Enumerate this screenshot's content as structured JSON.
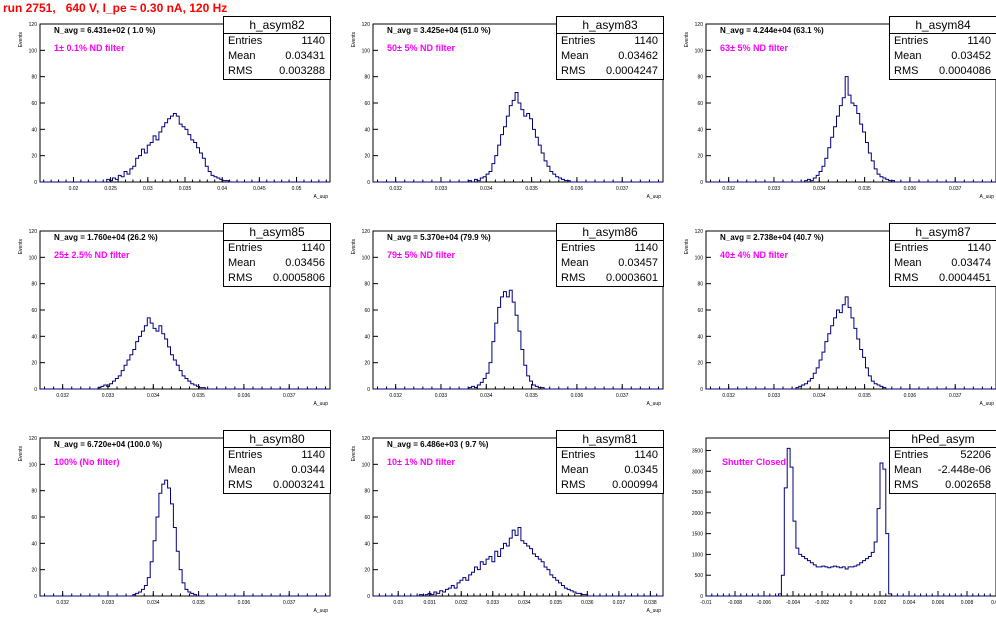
{
  "title": "run 2751,   640 V, I_pe ≈ 0.30 nA, 120 Hz",
  "chart_data": [
    {
      "type": "bar",
      "name": "h_asym82",
      "stat_labels": [
        "Entries",
        "Mean",
        "RMS"
      ],
      "entries": "1140",
      "mean": "0.03431",
      "rms": "0.003288",
      "n_avg": "N_avg = 6.431e+02 ( 1.0 %)",
      "filter": "1± 0.1% ND filter",
      "xlabel": "A_uup",
      "ylabel": "Events",
      "xlim": [
        0.0155,
        0.0545
      ],
      "ylim": [
        0,
        120
      ],
      "xticks": [
        0.02,
        0.025,
        0.03,
        0.035,
        0.04,
        0.045,
        0.05
      ],
      "xtick_labels": [
        "0.02",
        "0.025",
        "0.03",
        "0.035",
        "0.04",
        "0.045",
        "0.05"
      ],
      "yticks": [
        0,
        20,
        40,
        60,
        80,
        100,
        120
      ],
      "ytick_labels": [
        "0",
        "20",
        "40",
        "60",
        "80",
        "100",
        "120"
      ],
      "x0": 0.0155,
      "bin_width": 0.00039,
      "values": [
        0,
        0,
        0,
        0,
        0,
        0,
        0,
        0,
        0,
        0,
        0,
        0,
        0,
        0,
        0,
        0,
        0,
        0,
        0,
        0,
        0,
        0,
        0,
        2,
        1,
        3,
        2,
        5,
        4,
        8,
        6,
        10,
        12,
        18,
        20,
        25,
        22,
        28,
        30,
        35,
        32,
        38,
        42,
        45,
        48,
        50,
        52,
        50,
        44,
        42,
        40,
        36,
        32,
        30,
        26,
        22,
        18,
        12,
        8,
        5,
        4,
        3,
        2,
        1,
        1,
        0,
        0,
        0,
        0,
        0,
        0,
        0,
        0,
        0,
        0,
        0,
        0,
        0,
        0,
        0,
        0,
        0,
        0,
        0,
        0,
        0,
        0,
        0,
        0,
        0,
        0,
        0,
        0,
        0,
        0,
        0,
        0,
        0,
        0,
        0
      ]
    },
    {
      "type": "bar",
      "name": "h_asym83",
      "stat_labels": [
        "Entries",
        "Mean",
        "RMS"
      ],
      "entries": "1140",
      "mean": "0.03462",
      "rms": "0.0004247",
      "n_avg": "N_avg = 3.425e+04 (51.0 %)",
      "filter": "50± 5% ND filter",
      "xlabel": "A_uup",
      "ylabel": "Events",
      "xlim": [
        0.0315,
        0.0379
      ],
      "ylim": [
        0,
        120
      ],
      "xticks": [
        0.032,
        0.033,
        0.034,
        0.035,
        0.036,
        0.037
      ],
      "xtick_labels": [
        "0.032",
        "0.033",
        "0.034",
        "0.035",
        "0.036",
        "0.037"
      ],
      "yticks": [
        0,
        20,
        40,
        60,
        80,
        100,
        120
      ],
      "ytick_labels": [
        "0",
        "20",
        "40",
        "60",
        "80",
        "100",
        "120"
      ],
      "x0": 0.0315,
      "bin_width": 6.4e-05,
      "values": [
        0,
        0,
        0,
        0,
        0,
        0,
        0,
        0,
        0,
        0,
        0,
        0,
        0,
        0,
        0,
        0,
        0,
        0,
        0,
        0,
        0,
        0,
        0,
        0,
        0,
        0,
        0,
        0,
        0,
        0,
        0,
        0,
        0,
        1,
        0,
        2,
        1,
        3,
        4,
        6,
        8,
        14,
        20,
        28,
        36,
        42,
        50,
        58,
        62,
        68,
        60,
        55,
        50,
        52,
        48,
        40,
        34,
        28,
        22,
        16,
        12,
        8,
        6,
        4,
        3,
        2,
        1,
        1,
        0,
        0,
        0,
        0,
        0,
        0,
        0,
        0,
        0,
        0,
        0,
        0,
        0,
        0,
        0,
        0,
        0,
        0,
        0,
        0,
        0,
        0,
        0,
        0,
        0,
        0,
        0,
        0,
        0,
        0,
        0,
        0
      ]
    },
    {
      "type": "bar",
      "name": "h_asym84",
      "stat_labels": [
        "Entries",
        "Mean",
        "RMS"
      ],
      "entries": "1140",
      "mean": "0.03452",
      "rms": "0.0004086",
      "n_avg": "N_avg = 4.244e+04 (63.1 %)",
      "filter": "63± 5% ND filter",
      "xlabel": "A_uup",
      "ylabel": "Events",
      "xlim": [
        0.0315,
        0.0379
      ],
      "ylim": [
        0,
        120
      ],
      "xticks": [
        0.032,
        0.033,
        0.034,
        0.035,
        0.036,
        0.037
      ],
      "xtick_labels": [
        "0.032",
        "0.033",
        "0.034",
        "0.035",
        "0.036",
        "0.037"
      ],
      "yticks": [
        0,
        20,
        40,
        60,
        80,
        100,
        120
      ],
      "ytick_labels": [
        "0",
        "20",
        "40",
        "60",
        "80",
        "100",
        "120"
      ],
      "x0": 0.0315,
      "bin_width": 6.4e-05,
      "values": [
        0,
        0,
        0,
        0,
        0,
        0,
        0,
        0,
        0,
        0,
        0,
        0,
        0,
        0,
        0,
        0,
        0,
        0,
        0,
        0,
        0,
        0,
        0,
        0,
        0,
        0,
        0,
        0,
        0,
        0,
        0,
        0,
        0,
        0,
        1,
        2,
        1,
        3,
        5,
        8,
        12,
        18,
        26,
        34,
        42,
        50,
        58,
        64,
        80,
        66,
        60,
        58,
        52,
        44,
        38,
        30,
        22,
        16,
        10,
        6,
        4,
        3,
        2,
        1,
        1,
        0,
        0,
        0,
        0,
        0,
        0,
        0,
        0,
        0,
        0,
        0,
        0,
        0,
        0,
        0,
        0,
        0,
        0,
        0,
        0,
        0,
        0,
        0,
        0,
        0,
        0,
        0,
        0,
        0,
        0,
        0,
        0,
        0,
        0,
        0
      ]
    },
    {
      "type": "bar",
      "name": "h_asym85",
      "stat_labels": [
        "Entries",
        "Mean",
        "RMS"
      ],
      "entries": "1140",
      "mean": "0.03456",
      "rms": "0.0005806",
      "n_avg": "N_avg = 1.760e+04 (26.2 %)",
      "filter": "25± 2.5% ND filter",
      "xlabel": "A_uup",
      "ylabel": "Events",
      "xlim": [
        0.0315,
        0.0379
      ],
      "ylim": [
        0,
        120
      ],
      "xticks": [
        0.032,
        0.033,
        0.034,
        0.035,
        0.036,
        0.037
      ],
      "xtick_labels": [
        "0.032",
        "0.033",
        "0.034",
        "0.035",
        "0.036",
        "0.037"
      ],
      "yticks": [
        0,
        20,
        40,
        60,
        80,
        100,
        120
      ],
      "ytick_labels": [
        "0",
        "20",
        "40",
        "60",
        "80",
        "100",
        "120"
      ],
      "x0": 0.0315,
      "bin_width": 6.4e-05,
      "values": [
        0,
        0,
        0,
        0,
        0,
        0,
        0,
        0,
        0,
        0,
        0,
        0,
        0,
        0,
        0,
        0,
        0,
        0,
        0,
        0,
        1,
        2,
        3,
        2,
        4,
        6,
        8,
        10,
        14,
        18,
        22,
        26,
        30,
        36,
        40,
        44,
        48,
        54,
        50,
        46,
        44,
        48,
        42,
        38,
        32,
        26,
        22,
        18,
        14,
        10,
        8,
        6,
        4,
        3,
        2,
        1,
        1,
        0,
        0,
        0,
        0,
        0,
        0,
        0,
        0,
        0,
        0,
        0,
        0,
        0,
        0,
        0,
        0,
        0,
        0,
        0,
        0,
        0,
        0,
        0,
        0,
        0,
        0,
        0,
        0,
        0,
        0,
        0,
        0,
        0,
        0,
        0,
        0,
        0,
        0,
        0,
        0,
        0,
        0,
        0
      ]
    },
    {
      "type": "bar",
      "name": "h_asym86",
      "stat_labels": [
        "Entries",
        "Mean",
        "RMS"
      ],
      "entries": "1140",
      "mean": "0.03457",
      "rms": "0.0003601",
      "n_avg": "N_avg = 5.370e+04 (79.9 %)",
      "filter": "79± 5% ND filter",
      "xlabel": "A_uup",
      "ylabel": "Events",
      "xlim": [
        0.0315,
        0.0379
      ],
      "ylim": [
        0,
        120
      ],
      "xticks": [
        0.032,
        0.033,
        0.034,
        0.035,
        0.036,
        0.037
      ],
      "xtick_labels": [
        "0.032",
        "0.033",
        "0.034",
        "0.035",
        "0.036",
        "0.037"
      ],
      "yticks": [
        0,
        20,
        40,
        60,
        80,
        100,
        120
      ],
      "ytick_labels": [
        "0",
        "20",
        "40",
        "60",
        "80",
        "100",
        "120"
      ],
      "x0": 0.0315,
      "bin_width": 6.4e-05,
      "values": [
        0,
        0,
        0,
        0,
        0,
        0,
        0,
        0,
        0,
        0,
        0,
        0,
        0,
        0,
        0,
        0,
        0,
        0,
        0,
        0,
        0,
        0,
        0,
        0,
        0,
        0,
        0,
        0,
        0,
        0,
        0,
        0,
        0,
        1,
        2,
        1,
        3,
        5,
        8,
        12,
        20,
        36,
        50,
        62,
        70,
        74,
        70,
        75,
        66,
        56,
        44,
        30,
        18,
        10,
        6,
        3,
        2,
        1,
        1,
        0,
        0,
        0,
        0,
        0,
        0,
        0,
        0,
        0,
        0,
        0,
        0,
        0,
        0,
        0,
        0,
        0,
        0,
        0,
        0,
        0,
        0,
        0,
        0,
        0,
        0,
        0,
        0,
        0,
        0,
        0,
        0,
        0,
        0,
        0,
        0,
        0,
        0,
        0,
        0,
        0
      ]
    },
    {
      "type": "bar",
      "name": "h_asym87",
      "stat_labels": [
        "Entries",
        "Mean",
        "RMS"
      ],
      "entries": "1140",
      "mean": "0.03474",
      "rms": "0.0004451",
      "n_avg": "N_avg = 2.738e+04 (40.7 %)",
      "filter": "40± 4% ND filter",
      "xlabel": "A_uup",
      "ylabel": "Events",
      "xlim": [
        0.0315,
        0.0379
      ],
      "ylim": [
        0,
        120
      ],
      "xticks": [
        0.032,
        0.033,
        0.034,
        0.035,
        0.036,
        0.037
      ],
      "xtick_labels": [
        "0.032",
        "0.033",
        "0.034",
        "0.035",
        "0.036",
        "0.037"
      ],
      "yticks": [
        0,
        20,
        40,
        60,
        80,
        100,
        120
      ],
      "ytick_labels": [
        "0",
        "20",
        "40",
        "60",
        "80",
        "100",
        "120"
      ],
      "x0": 0.0315,
      "bin_width": 6.4e-05,
      "values": [
        0,
        0,
        0,
        0,
        0,
        0,
        0,
        0,
        0,
        0,
        0,
        0,
        0,
        0,
        0,
        0,
        0,
        0,
        0,
        0,
        0,
        0,
        0,
        0,
        0,
        0,
        0,
        0,
        0,
        0,
        0,
        1,
        2,
        3,
        4,
        6,
        8,
        12,
        16,
        22,
        28,
        36,
        42,
        48,
        54,
        60,
        58,
        64,
        70,
        62,
        54,
        46,
        38,
        30,
        24,
        16,
        10,
        6,
        4,
        3,
        2,
        1,
        0,
        0,
        0,
        0,
        0,
        0,
        0,
        0,
        0,
        0,
        0,
        0,
        0,
        0,
        0,
        0,
        0,
        0,
        0,
        0,
        0,
        0,
        0,
        0,
        0,
        0,
        0,
        0,
        0,
        0,
        0,
        0,
        0,
        0,
        0,
        0,
        0,
        0
      ]
    },
    {
      "type": "bar",
      "name": "h_asym80",
      "stat_labels": [
        "Entries",
        "Mean",
        "RMS"
      ],
      "entries": "1140",
      "mean": "0.0344",
      "rms": "0.0003241",
      "n_avg": "N_avg = 6.720e+04 (100.0 %)",
      "filter": "100% (No filter)",
      "xlabel": "A_uup",
      "ylabel": "Events",
      "xlim": [
        0.0315,
        0.0379
      ],
      "ylim": [
        0,
        120
      ],
      "xticks": [
        0.032,
        0.033,
        0.034,
        0.035,
        0.036,
        0.037
      ],
      "xtick_labels": [
        "0.032",
        "0.033",
        "0.034",
        "0.035",
        "0.036",
        "0.037"
      ],
      "yticks": [
        0,
        20,
        40,
        60,
        80,
        100,
        120
      ],
      "ytick_labels": [
        "0",
        "20",
        "40",
        "60",
        "80",
        "100",
        "120"
      ],
      "x0": 0.0315,
      "bin_width": 6.4e-05,
      "values": [
        0,
        0,
        0,
        0,
        0,
        0,
        0,
        0,
        0,
        0,
        0,
        0,
        0,
        0,
        0,
        0,
        0,
        0,
        0,
        0,
        0,
        0,
        0,
        0,
        0,
        0,
        0,
        0,
        0,
        0,
        0,
        0,
        1,
        2,
        3,
        5,
        8,
        14,
        26,
        42,
        60,
        78,
        85,
        88,
        82,
        70,
        52,
        34,
        20,
        10,
        5,
        3,
        2,
        1,
        0,
        0,
        0,
        0,
        0,
        0,
        0,
        0,
        0,
        0,
        0,
        0,
        0,
        0,
        0,
        0,
        0,
        0,
        0,
        0,
        0,
        0,
        0,
        0,
        0,
        0,
        0,
        0,
        0,
        0,
        0,
        0,
        0,
        0,
        0,
        0,
        0,
        0,
        0,
        0,
        0,
        0,
        0,
        0,
        0,
        0
      ]
    },
    {
      "type": "bar",
      "name": "h_asym81",
      "stat_labels": [
        "Entries",
        "Mean",
        "RMS"
      ],
      "entries": "1140",
      "mean": "0.0345",
      "rms": "0.000994",
      "n_avg": "N_avg = 6.486e+03 ( 9.7 %)",
      "filter": "10± 1% ND filter",
      "xlabel": "A_uup",
      "ylabel": "Events",
      "xlim": [
        0.0292,
        0.0384
      ],
      "ylim": [
        0,
        120
      ],
      "xticks": [
        0.03,
        0.031,
        0.032,
        0.033,
        0.034,
        0.035,
        0.036,
        0.037,
        0.038
      ],
      "xtick_labels": [
        "0.03",
        "0.031",
        "0.032",
        "0.033",
        "0.034",
        "0.035",
        "0.036",
        "0.037",
        "0.038"
      ],
      "yticks": [
        0,
        20,
        40,
        60,
        80,
        100,
        120
      ],
      "ytick_labels": [
        "0",
        "20",
        "40",
        "60",
        "80",
        "100",
        "120"
      ],
      "x0": 0.0292,
      "bin_width": 9.2e-05,
      "values": [
        0,
        0,
        0,
        0,
        0,
        0,
        0,
        0,
        0,
        0,
        0,
        0,
        0,
        0,
        0,
        0,
        1,
        0,
        1,
        2,
        1,
        3,
        2,
        4,
        3,
        5,
        6,
        8,
        6,
        10,
        12,
        14,
        12,
        16,
        18,
        22,
        20,
        26,
        24,
        28,
        30,
        26,
        34,
        30,
        36,
        40,
        38,
        44,
        50,
        46,
        52,
        42,
        40,
        38,
        36,
        32,
        30,
        28,
        26,
        22,
        20,
        16,
        14,
        12,
        10,
        8,
        6,
        5,
        4,
        3,
        2,
        2,
        1,
        1,
        0,
        0,
        0,
        0,
        0,
        0,
        0,
        0,
        0,
        0,
        0,
        0,
        0,
        0,
        0,
        0,
        0,
        0,
        0,
        0,
        0,
        0,
        0,
        0,
        0,
        0
      ]
    },
    {
      "type": "bar",
      "name": "hPed_asym",
      "stat_labels": [
        "Entries",
        "Mean",
        "RMS"
      ],
      "entries": "52206",
      "mean": "-2.448e-06",
      "rms": "0.002658",
      "n_avg": "",
      "filter": "Shutter Closed",
      "xlabel": "",
      "ylabel": "",
      "xlim": [
        -0.01,
        0.01
      ],
      "ylim": [
        0,
        3800
      ],
      "xticks": [
        -0.01,
        -0.008,
        -0.006,
        -0.004,
        -0.002,
        0,
        0.002,
        0.004,
        0.006,
        0.008,
        0.01
      ],
      "xtick_labels": [
        "-0.01",
        "-0.008",
        "-0.006",
        "-0.004",
        "-0.002",
        "0",
        "0.002",
        "0.004",
        "0.006",
        "0.008",
        "0.01"
      ],
      "yticks": [
        0,
        500,
        1000,
        1500,
        2000,
        2500,
        3000,
        3500
      ],
      "ytick_labels": [
        "0",
        "500",
        "1000",
        "1500",
        "2000",
        "2500",
        "3000",
        "3500"
      ],
      "x0": -0.01,
      "bin_width": 0.0002,
      "values": [
        0,
        0,
        0,
        0,
        0,
        0,
        0,
        0,
        0,
        0,
        0,
        0,
        0,
        0,
        0,
        0,
        0,
        0,
        0,
        0,
        0,
        0,
        0,
        0,
        0,
        50,
        500,
        2600,
        3550,
        3100,
        1800,
        1150,
        1000,
        950,
        900,
        850,
        800,
        750,
        700,
        700,
        720,
        700,
        680,
        700,
        720,
        700,
        680,
        700,
        650,
        700,
        700,
        720,
        750,
        800,
        850,
        900,
        950,
        1050,
        1300,
        2100,
        3200,
        3050,
        1500,
        50,
        0,
        0,
        0,
        0,
        0,
        0,
        0,
        0,
        0,
        0,
        0,
        0,
        0,
        0,
        0,
        0,
        0,
        0,
        0,
        0,
        0,
        0,
        0,
        0,
        0,
        0,
        0,
        0,
        0,
        0,
        0,
        0,
        0,
        0
      ]
    }
  ]
}
